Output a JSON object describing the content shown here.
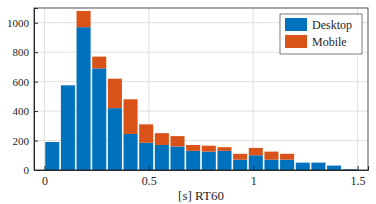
{
  "chart_data": {
    "type": "histogram",
    "stacked": true,
    "grid": true,
    "legend": "top-right",
    "x_label": "[s] RT60",
    "bins": [
      0,
      0.075,
      0.15,
      0.225,
      0.3,
      0.375,
      0.45,
      0.525,
      0.6,
      0.675,
      0.75,
      0.825,
      0.9,
      0.975,
      1.05,
      1.125,
      1.2,
      1.275,
      1.35,
      1.425,
      1.5
    ],
    "series": [
      {
        "name": "Desktop",
        "color": "#0072bd",
        "values": [
          190,
          575,
          970,
          690,
          420,
          245,
          185,
          170,
          160,
          130,
          125,
          130,
          70,
          100,
          70,
          70,
          50,
          50,
          30,
          5
        ]
      },
      {
        "name": "Mobile",
        "color": "#d95319",
        "values": [
          0,
          0,
          110,
          80,
          200,
          235,
          125,
          80,
          70,
          40,
          40,
          25,
          40,
          50,
          55,
          40,
          0,
          0,
          0,
          0
        ]
      }
    ],
    "xlim": [
      -0.05,
      1.55
    ],
    "xticks": [
      0,
      0.5,
      1,
      1.5
    ],
    "ylim": [
      0,
      1100
    ],
    "yticks": [
      0,
      200,
      400,
      600,
      800,
      1000
    ]
  }
}
